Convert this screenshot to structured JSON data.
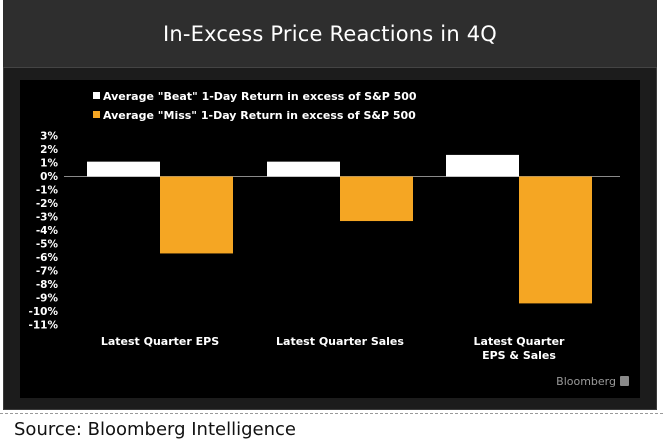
{
  "chart_data": {
    "type": "bar",
    "title": "In-Excess Price Reactions in 4Q",
    "categories": [
      "Latest Quarter EPS",
      "Latest Quarter Sales",
      "Latest Quarter EPS & Sales"
    ],
    "category_lines": [
      [
        "Latest Quarter EPS"
      ],
      [
        "Latest Quarter Sales"
      ],
      [
        "Latest Quarter",
        "EPS & Sales"
      ]
    ],
    "series": [
      {
        "name": "Average \"Beat\" 1-Day Return in excess of S&P 500",
        "color": "#ffffff",
        "values": [
          1.1,
          1.1,
          1.6
        ]
      },
      {
        "name": "Average \"Miss\" 1-Day Return in excess of S&P 500",
        "color": "#f5a623",
        "values": [
          -5.7,
          -3.3,
          -9.4
        ]
      }
    ],
    "yticks": [
      3,
      2,
      1,
      0,
      -1,
      -2,
      -3,
      -4,
      -5,
      -6,
      -7,
      -8,
      -9,
      -10,
      -11
    ],
    "ytick_labels": [
      "3%",
      "2%",
      "1%",
      "0%",
      "-1%",
      "-2%",
      "-3%",
      "-4%",
      "-5%",
      "-6%",
      "-7%",
      "-8%",
      "-9%",
      "-10%",
      "-11%"
    ],
    "ylim": [
      -11,
      3
    ],
    "grid": false,
    "legend": "top-left",
    "background": "#000000"
  },
  "branding": {
    "logo": "Bloomberg",
    "logo_icon": "bloomberg-square-icon"
  },
  "source": "Source: Bloomberg Intelligence"
}
